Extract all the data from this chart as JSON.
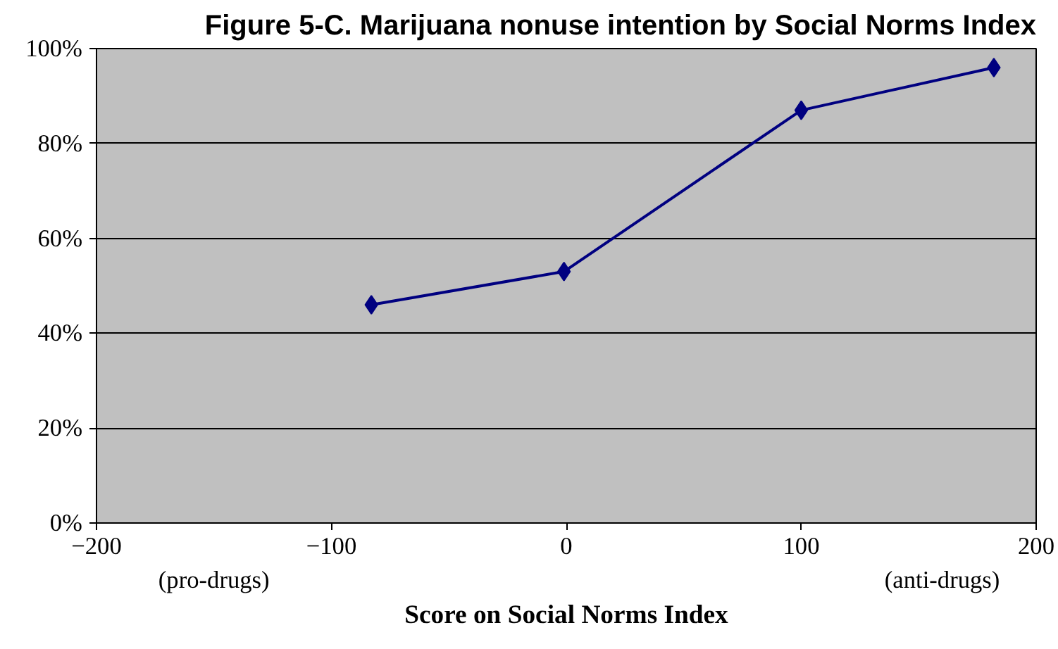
{
  "chart_data": {
    "type": "line",
    "title": "Figure 5-C. Marijuana nonuse intention by Social Norms Index",
    "xlabel": "Score on Social Norms Index",
    "x": [
      -83,
      -1,
      100,
      182
    ],
    "series": [
      {
        "color": "#000080",
        "values": [
          46,
          53,
          87,
          96
        ]
      }
    ],
    "xlim": [
      -200,
      200
    ],
    "xticks": [
      -200,
      -100,
      0,
      100,
      200
    ],
    "ylim": [
      0,
      100
    ],
    "yticks": [
      {
        "value": 0,
        "label": "0%"
      },
      {
        "value": 20,
        "label": "20%"
      },
      {
        "value": 40,
        "label": "40%"
      },
      {
        "value": 60,
        "label": "60%"
      },
      {
        "value": 80,
        "label": "80%"
      },
      {
        "value": 100,
        "label": "100%"
      }
    ],
    "grid": "y",
    "marker": "diamond",
    "line_style": "solid",
    "annotations": [
      "(pro-drugs)",
      "(anti-drugs)"
    ]
  }
}
